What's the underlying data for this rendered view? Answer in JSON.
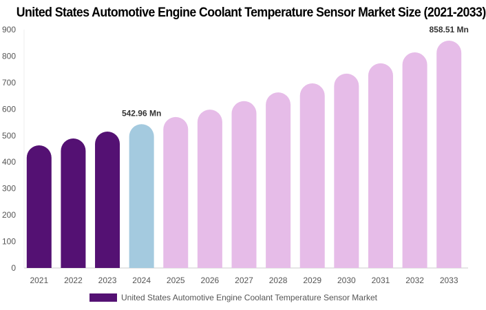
{
  "chart_data": {
    "type": "bar",
    "title": "United States Automotive Engine Coolant Temperature Sensor Market Size (2021-2033)",
    "categories": [
      "2021",
      "2022",
      "2023",
      "2024",
      "2025",
      "2026",
      "2027",
      "2028",
      "2029",
      "2030",
      "2031",
      "2032",
      "2033"
    ],
    "series": [
      {
        "name": "United States Automotive Engine Coolant Temperature Sensor Market",
        "values": [
          463,
          489,
          515,
          542.96,
          570,
          598,
          630,
          663,
          697,
          734,
          773,
          814,
          858.51
        ]
      }
    ],
    "data_labels": [
      {
        "index": 3,
        "text": "542.96 Mn"
      },
      {
        "index": 12,
        "text": "858.51 Mn"
      }
    ],
    "ylim": [
      0,
      900
    ],
    "yticks": [
      0,
      100,
      200,
      300,
      400,
      500,
      600,
      700,
      800,
      900
    ],
    "grid": false,
    "legend": "bottom",
    "colors": {
      "historical": "#541173",
      "base_year": "#a4cadf",
      "forecast": "#e6bce8"
    }
  }
}
